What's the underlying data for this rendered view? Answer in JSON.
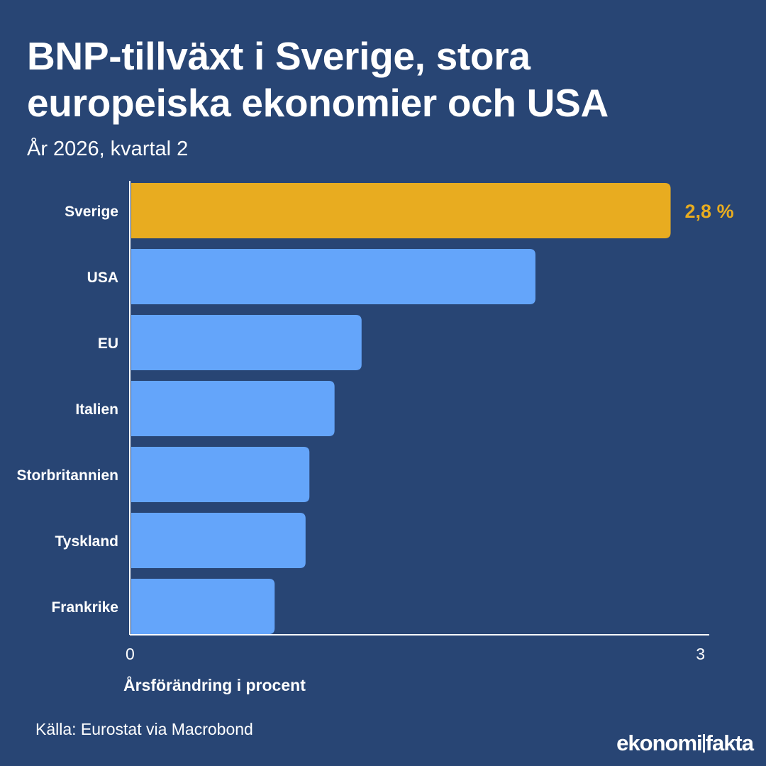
{
  "header": {
    "title": "BNP-tillväxt i Sverige, stora europeiska ekonomier och USA",
    "subtitle": "År 2026, kvartal 2"
  },
  "footer": {
    "source": "Källa: Eurostat via Macrobond",
    "logo_part1": "ekonomi",
    "logo_part2": "fakta"
  },
  "colors": {
    "background": "#284574",
    "highlight": "#E8AC20",
    "bar": "#64A5FA",
    "text": "#FFFFFF"
  },
  "chart_data": {
    "type": "bar",
    "orientation": "horizontal",
    "categories": [
      "Sverige",
      "USA",
      "EU",
      "Italien",
      "Storbritannien",
      "Tyskland",
      "Frankrike"
    ],
    "values": [
      2.8,
      2.1,
      1.2,
      1.06,
      0.93,
      0.91,
      0.75
    ],
    "highlight_index": 0,
    "value_labels": [
      "2,8 %",
      "",
      "",
      "",
      "",
      "",
      ""
    ],
    "xlabel": "Årsförändring i procent",
    "xlim": [
      0,
      3
    ],
    "xticks": [
      0,
      3
    ],
    "grid": false
  }
}
